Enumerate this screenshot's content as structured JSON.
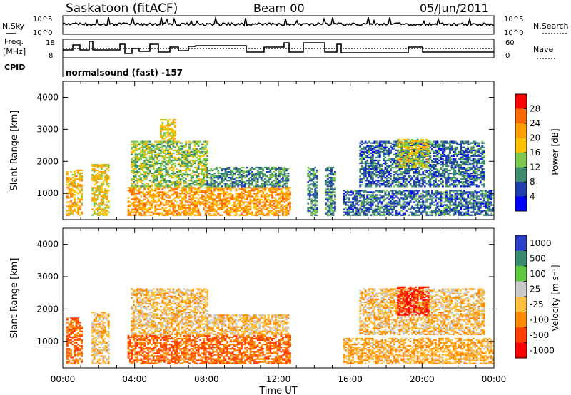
{
  "header": {
    "title": "Saskatoon (fitACF)",
    "beam": "Beam 00",
    "date": "05/Jun/2011"
  },
  "top_panels": {
    "nsky_label": "N.Sky",
    "nsearch_label": "N.Search",
    "nsky_ticks": [
      "10^5",
      "10^0"
    ],
    "freq_label_1": "Freq.",
    "freq_label_2": "[MHz]",
    "freq_ticks": [
      "18",
      "8"
    ],
    "nave_label": "Nave",
    "nave_ticks": [
      "60",
      "0"
    ],
    "cpid_label": "CPID",
    "cpid_value": "normalsound (fast) -157"
  },
  "colorbars": {
    "power": {
      "label": "Power [dB]",
      "ticks": [
        "28",
        "24",
        "20",
        "16",
        "12",
        "8",
        "4"
      ],
      "colors": [
        "#ff0000",
        "#ff6a00",
        "#ff9c00",
        "#ffc000",
        "#7ec850",
        "#3e8c6e",
        "#2040b0",
        "#0000ff"
      ]
    },
    "velocity": {
      "label": "Velocity [m s⁻¹]",
      "ticks": [
        "1000",
        "500",
        "100",
        "25",
        "-25",
        "-100",
        "-500",
        "-1000"
      ],
      "colors": [
        "#2a40c8",
        "#3a8a70",
        "#60c840",
        "#c8c8c8",
        "#ffc040",
        "#ff8a00",
        "#ff4000",
        "#ff0000"
      ]
    }
  },
  "chart_data": [
    {
      "type": "heatmap",
      "panel": "power",
      "ylabel": "Slant Range [km]",
      "xlabel": "",
      "xlim": [
        "00:00",
        "24:00"
      ],
      "ylim": [
        180,
        4500
      ],
      "yticks": [
        "4000",
        "3000",
        "2000",
        "1000"
      ],
      "xticks": [
        "00:00",
        "04:00",
        "08:00",
        "12:00",
        "16:00",
        "20:00",
        "00:00"
      ],
      "colorbar_units": "dB",
      "echo_regions": [
        {
          "t_start": 0.2,
          "t_end": 1.0,
          "range_low": 300,
          "range_high": 1700,
          "power_db": 20
        },
        {
          "t_start": 1.6,
          "t_end": 2.6,
          "range_low": 300,
          "range_high": 1900,
          "power_db": 18
        },
        {
          "t_start": 3.6,
          "t_end": 12.6,
          "range_low": 300,
          "range_high": 1200,
          "power_db": 22
        },
        {
          "t_start": 3.8,
          "t_end": 8.0,
          "range_low": 1200,
          "range_high": 2600,
          "power_db": 14
        },
        {
          "t_start": 5.4,
          "t_end": 6.2,
          "range_low": 2600,
          "range_high": 3300,
          "power_db": 18
        },
        {
          "t_start": 8.0,
          "t_end": 12.5,
          "range_low": 1200,
          "range_high": 1800,
          "power_db": 10
        },
        {
          "t_start": 13.6,
          "t_end": 14.1,
          "range_low": 300,
          "range_high": 1800,
          "power_db": 10
        },
        {
          "t_start": 14.6,
          "t_end": 15.1,
          "range_low": 300,
          "range_high": 1800,
          "power_db": 10
        },
        {
          "t_start": 15.6,
          "t_end": 24.0,
          "range_low": 300,
          "range_high": 1100,
          "power_db": 8
        },
        {
          "t_start": 16.5,
          "t_end": 23.5,
          "range_low": 1200,
          "range_high": 2600,
          "power_db": 8
        },
        {
          "t_start": 18.6,
          "t_end": 20.4,
          "range_low": 1800,
          "range_high": 2700,
          "power_db": 16
        }
      ]
    },
    {
      "type": "heatmap",
      "panel": "velocity",
      "ylabel": "Slant Range [km]",
      "xlabel": "Time UT",
      "xlim": [
        "00:00",
        "24:00"
      ],
      "ylim": [
        180,
        4500
      ],
      "yticks": [
        "4000",
        "3000",
        "2000",
        "1000"
      ],
      "xticks": [
        "00:00",
        "04:00",
        "08:00",
        "12:00",
        "16:00",
        "20:00",
        "00:00"
      ],
      "colorbar_units": "m s-1",
      "echo_regions": [
        {
          "t_start": 0.2,
          "t_end": 1.0,
          "range_low": 300,
          "range_high": 1700,
          "velocity": -100
        },
        {
          "t_start": 1.6,
          "t_end": 2.6,
          "range_low": 300,
          "range_high": 1900,
          "velocity": 0
        },
        {
          "t_start": 3.6,
          "t_end": 12.6,
          "range_low": 300,
          "range_high": 1200,
          "velocity": -100
        },
        {
          "t_start": 3.8,
          "t_end": 8.0,
          "range_low": 1200,
          "range_high": 2600,
          "velocity": 0
        },
        {
          "t_start": 8.0,
          "t_end": 12.5,
          "range_low": 1200,
          "range_high": 1800,
          "velocity": 0
        },
        {
          "t_start": 15.6,
          "t_end": 24.0,
          "range_low": 300,
          "range_high": 1100,
          "velocity": -25
        },
        {
          "t_start": 16.5,
          "t_end": 23.5,
          "range_low": 1200,
          "range_high": 2600,
          "velocity": 0
        },
        {
          "t_start": 18.6,
          "t_end": 20.4,
          "range_low": 1800,
          "range_high": 2700,
          "velocity": -500
        }
      ]
    }
  ]
}
